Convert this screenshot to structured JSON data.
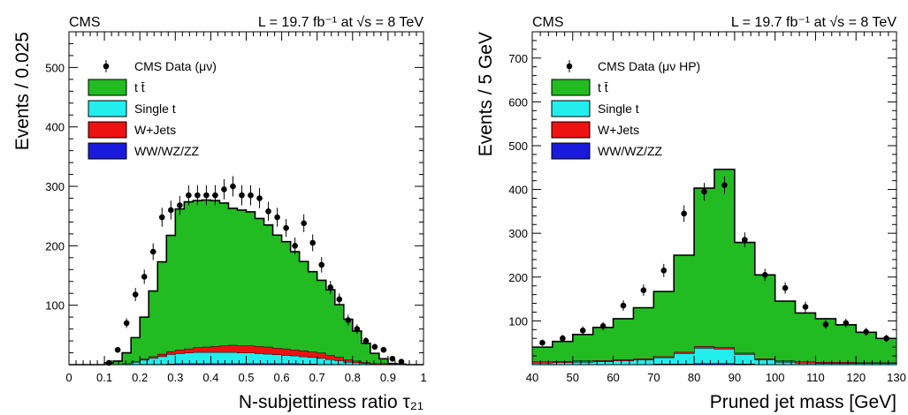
{
  "chart_data": [
    {
      "type": "bar",
      "title": "",
      "header_left": "CMS",
      "header_right": "L = 19.7 fb⁻¹ at √s = 8 TeV",
      "xlabel": "N-subjettiness ratio τ₂₁",
      "ylabel": "Events / 0.025",
      "xlim": [
        0,
        1
      ],
      "ylim": [
        0,
        560
      ],
      "x_ticks": [
        "0",
        "0.1",
        "0.2",
        "0.3",
        "0.4",
        "0.5",
        "0.6",
        "0.7",
        "0.8",
        "0.9",
        "1"
      ],
      "y_ticks": [
        "100",
        "200",
        "300",
        "400",
        "500"
      ],
      "bin_edges": [
        0.0,
        0.025,
        0.05,
        0.075,
        0.1,
        0.125,
        0.15,
        0.175,
        0.2,
        0.225,
        0.25,
        0.275,
        0.3,
        0.325,
        0.35,
        0.375,
        0.4,
        0.425,
        0.45,
        0.475,
        0.5,
        0.525,
        0.55,
        0.575,
        0.6,
        0.625,
        0.65,
        0.675,
        0.7,
        0.725,
        0.75,
        0.775,
        0.8,
        0.825,
        0.85,
        0.875,
        0.9,
        0.925,
        0.95,
        0.975,
        1.0
      ],
      "legend": {
        "position": "top-left",
        "entries": [
          {
            "label": "CMS Data (μν)",
            "style": "marker"
          },
          {
            "label": "t t̄",
            "style": "fill",
            "color": "#22bb22"
          },
          {
            "label": "Single t",
            "style": "fill",
            "color": "#22eeee"
          },
          {
            "label": "W+Jets",
            "style": "fill",
            "color": "#ee1111"
          },
          {
            "label": "WW/WZ/ZZ",
            "style": "fill",
            "color": "#1a1add"
          }
        ]
      },
      "series": [
        {
          "name": "WW/WZ/ZZ",
          "color": "#1a1add",
          "values": [
            0,
            0,
            0,
            0,
            0,
            0,
            0,
            0.5,
            1,
            1,
            1,
            1.5,
            2,
            2,
            2,
            2,
            2,
            2,
            2,
            2,
            2,
            2,
            2,
            2,
            2,
            2,
            1.5,
            1.5,
            1,
            1,
            1,
            0.5,
            0.5,
            0,
            0,
            0,
            0,
            0,
            0,
            0
          ]
        },
        {
          "name": "Single t",
          "color": "#22eeee",
          "values": [
            0,
            0,
            0,
            0,
            0,
            0,
            2,
            4,
            7,
            10,
            13,
            16,
            17,
            18,
            19,
            19,
            19,
            19,
            19,
            18,
            18,
            17,
            16,
            15,
            14,
            13,
            12,
            11,
            10,
            8,
            6,
            4,
            3,
            2,
            1,
            1,
            0,
            0,
            0,
            0
          ]
        },
        {
          "name": "W+Jets",
          "color": "#ee1111",
          "values": [
            0,
            0,
            0,
            0,
            0,
            0,
            0,
            1,
            2,
            3,
            4,
            5,
            6,
            7,
            8,
            9,
            10,
            11,
            12,
            12,
            12,
            12,
            12,
            11,
            11,
            10,
            10,
            9,
            9,
            7,
            6,
            4,
            3,
            2,
            1,
            1,
            0,
            0,
            0,
            0
          ]
        },
        {
          "name": "t t̄",
          "color": "#22bb22",
          "values": [
            0,
            0,
            0,
            0,
            3,
            6,
            18,
            40,
            70,
            110,
            155,
            195,
            237,
            247,
            247,
            247,
            245,
            240,
            230,
            228,
            225,
            215,
            205,
            190,
            180,
            165,
            150,
            135,
            122,
            110,
            88,
            68,
            50,
            32,
            17,
            8,
            2,
            1,
            0,
            0
          ]
        }
      ],
      "data_points": {
        "name": "CMS Data (μν)",
        "x": [
          0.1125,
          0.1375,
          0.1625,
          0.1875,
          0.2125,
          0.2375,
          0.2625,
          0.2875,
          0.3125,
          0.3375,
          0.3625,
          0.3875,
          0.4125,
          0.4375,
          0.4625,
          0.4875,
          0.5125,
          0.5375,
          0.5625,
          0.5875,
          0.6125,
          0.6375,
          0.6625,
          0.6875,
          0.7125,
          0.7375,
          0.7625,
          0.7875,
          0.8125,
          0.8375,
          0.8625,
          0.8875,
          0.9125,
          0.9375
        ],
        "y": [
          3,
          25,
          70,
          118,
          148,
          190,
          248,
          260,
          268,
          285,
          285,
          285,
          285,
          295,
          300,
          285,
          285,
          280,
          258,
          248,
          230,
          200,
          238,
          205,
          168,
          130,
          110,
          75,
          60,
          40,
          30,
          25,
          10,
          5
        ],
        "err": [
          2,
          5,
          8,
          11,
          12,
          14,
          16,
          16,
          16,
          17,
          17,
          17,
          17,
          17,
          17,
          17,
          17,
          17,
          16,
          16,
          15,
          14,
          15,
          14,
          13,
          11,
          10,
          9,
          8,
          6,
          5,
          5,
          3,
          2
        ]
      }
    },
    {
      "type": "bar",
      "title": "",
      "header_left": "CMS",
      "header_right": "L = 19.7 fb⁻¹ at √s = 8 TeV",
      "xlabel": "Pruned jet mass [GeV]",
      "ylabel": "Events / 5 GeV",
      "xlim": [
        40,
        130
      ],
      "ylim": [
        0,
        760
      ],
      "x_ticks": [
        "40",
        "50",
        "60",
        "70",
        "80",
        "90",
        "100",
        "110",
        "120",
        "130"
      ],
      "y_ticks": [
        "100",
        "200",
        "300",
        "400",
        "500",
        "600",
        "700"
      ],
      "bin_edges": [
        40,
        45,
        50,
        55,
        60,
        65,
        70,
        75,
        80,
        85,
        90,
        95,
        100,
        105,
        110,
        115,
        120,
        125,
        130
      ],
      "legend": {
        "position": "top-left",
        "entries": [
          {
            "label": "CMS Data (μν HP)",
            "style": "marker"
          },
          {
            "label": "t t̄",
            "style": "fill",
            "color": "#22bb22"
          },
          {
            "label": "Single t",
            "style": "fill",
            "color": "#22eeee"
          },
          {
            "label": "W+Jets",
            "style": "fill",
            "color": "#ee1111"
          },
          {
            "label": "WW/WZ/ZZ",
            "style": "fill",
            "color": "#1a1add"
          }
        ]
      },
      "series": [
        {
          "name": "WW/WZ/ZZ",
          "color": "#1a1add",
          "values": [
            1,
            1,
            1,
            1,
            1,
            1,
            2,
            2,
            3,
            3,
            2,
            1,
            1,
            1,
            1,
            1,
            1,
            1
          ]
        },
        {
          "name": "Single t",
          "color": "#22eeee",
          "values": [
            3,
            4,
            5,
            6,
            8,
            10,
            14,
            24,
            35,
            33,
            22,
            10,
            5,
            3,
            2,
            2,
            2,
            2
          ]
        },
        {
          "name": "W+Jets",
          "color": "#ee1111",
          "values": [
            3,
            3,
            3,
            3,
            3,
            3,
            3,
            3,
            4,
            4,
            3,
            3,
            3,
            3,
            3,
            3,
            2,
            2
          ]
        },
        {
          "name": "t t̄",
          "color": "#22bb22",
          "values": [
            33,
            45,
            60,
            75,
            93,
            116,
            148,
            221,
            361,
            406,
            252,
            191,
            136,
            111,
            99,
            85,
            69,
            55
          ]
        }
      ],
      "data_points": {
        "name": "CMS Data (μν HP)",
        "x": [
          42.5,
          47.5,
          52.5,
          57.5,
          62.5,
          67.5,
          72.5,
          77.5,
          82.5,
          87.5,
          92.5,
          97.5,
          102.5,
          107.5,
          112.5,
          117.5,
          122.5,
          127.5
        ],
        "y": [
          50,
          60,
          78,
          88,
          135,
          170,
          215,
          345,
          395,
          410,
          285,
          205,
          175,
          132,
          92,
          95,
          75,
          60
        ],
        "err": [
          7,
          8,
          9,
          9,
          12,
          13,
          15,
          19,
          20,
          20,
          17,
          14,
          13,
          12,
          10,
          10,
          9,
          8
        ]
      }
    }
  ]
}
